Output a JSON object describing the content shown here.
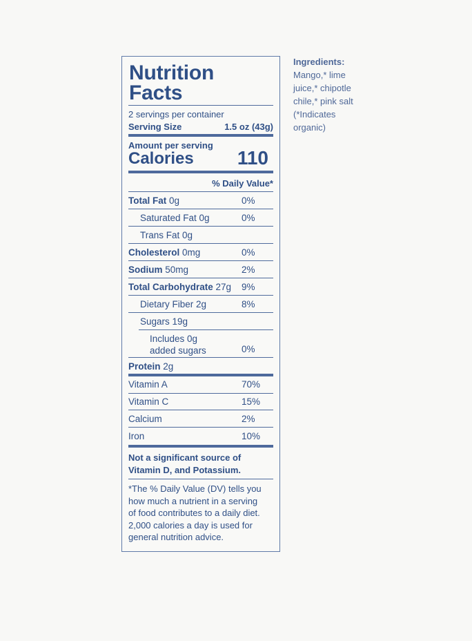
{
  "label": {
    "title_line1": "Nutrition",
    "title_line2": "Facts",
    "servings_per_container": "2 servings per container",
    "serving_size_label": "Serving Size",
    "serving_size_value": "1.5 oz (43g)",
    "amount_per_serving": "Amount per serving",
    "calories_label": "Calories",
    "calories_value": "110",
    "dv_header": "% Daily Value*",
    "nutrients": [
      {
        "name_bold": "Total Fat",
        "name": " 0g",
        "dv": "0%"
      },
      {
        "name_bold": "",
        "name": "Saturated Fat 0g",
        "dv": "0%"
      },
      {
        "name_bold": "",
        "name": "Trans Fat 0g",
        "dv": ""
      },
      {
        "name_bold": "Cholesterol",
        "name": " 0mg",
        "dv": "0%"
      },
      {
        "name_bold": "Sodium",
        "name": " 50mg",
        "dv": "2%"
      },
      {
        "name_bold": "Total Carbohydrate",
        "name": " 27g",
        "dv": "9%"
      },
      {
        "name_bold": "",
        "name": "Dietary Fiber 2g",
        "dv": "8%"
      },
      {
        "name_bold": "",
        "name": "Sugars 19g",
        "dv": ""
      },
      {
        "name_bold": "",
        "name": "Includes 0g",
        "name2": "added sugars",
        "dv": "0%"
      },
      {
        "name_bold": "Protein",
        "name": " 2g",
        "dv": ""
      }
    ],
    "vitamins": [
      {
        "name": "Vitamin A",
        "dv": "70%"
      },
      {
        "name": "Vitamin C",
        "dv": "15%"
      },
      {
        "name": "Calcium",
        "dv": "2%"
      },
      {
        "name": "Iron",
        "dv": "10%"
      }
    ],
    "not_significant_line1": "Not a significant source of",
    "not_significant_line2": "Vitamin D, and Potassium.",
    "footnote_lines": [
      "*The % Daily Value (DV) tells you",
      "how much a nutrient in a serving",
      "of food contributes to a daily diet.",
      "2,000 calories a day is used for",
      "general nutrition advice."
    ]
  },
  "ingredients": {
    "heading": "Ingredients:",
    "lines": [
      "Mango,* lime",
      "juice,* chipotle",
      "chile,* pink salt",
      "(*Indicates",
      "organic)"
    ]
  }
}
